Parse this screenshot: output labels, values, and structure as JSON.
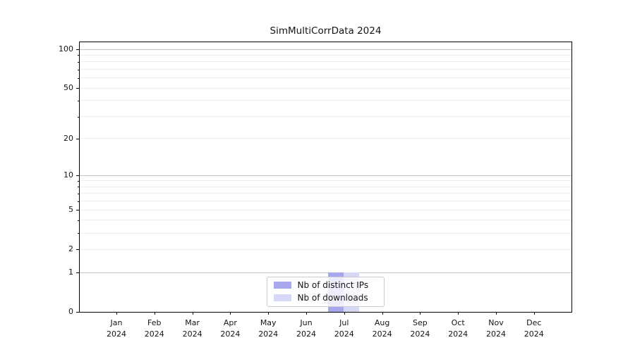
{
  "chart_data": {
    "type": "bar",
    "title": "SimMultiCorrData 2024",
    "categories": [
      "Jan",
      "Feb",
      "Mar",
      "Apr",
      "May",
      "Jun",
      "Jul",
      "Aug",
      "Sep",
      "Oct",
      "Nov",
      "Dec"
    ],
    "year_label": "2024",
    "series": [
      {
        "name": "Nb of distinct IPs",
        "color": "#a7a7ee",
        "values": [
          0,
          0,
          0,
          0,
          0,
          0,
          1,
          0,
          0,
          0,
          0,
          0
        ]
      },
      {
        "name": "Nb of downloads",
        "color": "#d7d7f6",
        "values": [
          0,
          0,
          0,
          0,
          0,
          0,
          1,
          0,
          0,
          0,
          0,
          0
        ]
      }
    ],
    "y_axis": {
      "scale": "log1p",
      "lim": [
        0,
        100
      ],
      "major_ticks": [
        0,
        1,
        2,
        5,
        10,
        20,
        50,
        100
      ],
      "minor_ticks": [
        3,
        4,
        6,
        7,
        8,
        9,
        30,
        40,
        60,
        70,
        80,
        90
      ],
      "power_gridline_values": [
        1,
        10,
        100
      ]
    },
    "x_axis": {
      "tick_count": 12
    },
    "legend": {
      "position": "lower center"
    },
    "grid": true,
    "colors": {
      "major_grid": "#c4c4c4",
      "minor_grid": "#ededed",
      "spine": "#000000",
      "background": "#ffffff"
    }
  }
}
